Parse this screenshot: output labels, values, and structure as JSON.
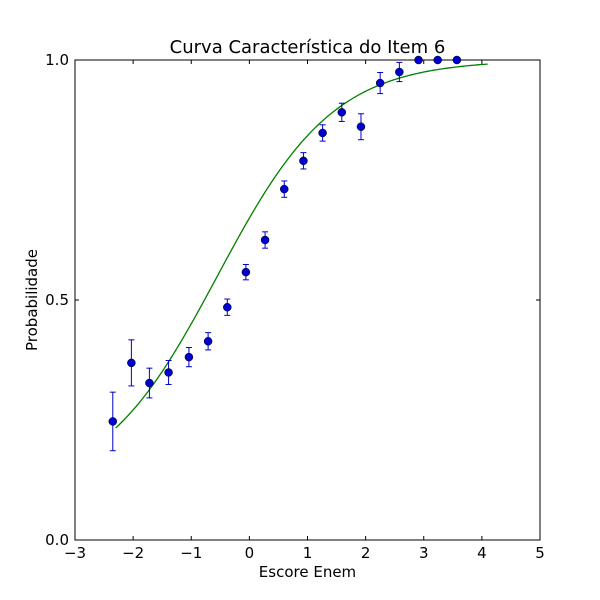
{
  "chart_data": {
    "type": "scatter",
    "title": "Curva Característica do Item 6",
    "xlabel": "Escore Enem",
    "ylabel": "Probabilidade",
    "xlim": [
      -3,
      5
    ],
    "ylim": [
      0.0,
      1.0
    ],
    "x_ticks": [
      -3,
      -2,
      -1,
      0,
      1,
      2,
      3,
      4,
      5
    ],
    "x_tick_labels": [
      "−3",
      "−2",
      "−1",
      "0",
      "1",
      "2",
      "3",
      "4",
      "5"
    ],
    "y_ticks": [
      0.0,
      0.5,
      1.0
    ],
    "y_tick_labels": [
      "0.0",
      "0.5",
      "1.0"
    ],
    "grid": false,
    "legend": "none",
    "series": [
      {
        "kind": "points-with-errorbars",
        "color": "#0000cc",
        "x": [
          -2.35,
          -2.03,
          -1.72,
          -1.39,
          -1.04,
          -0.71,
          -0.38,
          -0.06,
          0.27,
          0.6,
          0.93,
          1.26,
          1.59,
          1.92,
          2.25,
          2.58,
          2.91,
          3.24,
          3.57
        ],
        "y": [
          0.247,
          0.369,
          0.327,
          0.349,
          0.381,
          0.414,
          0.485,
          0.558,
          0.625,
          0.731,
          0.79,
          0.848,
          0.891,
          0.861,
          0.952,
          0.975,
          1.0,
          1.0,
          1.0
        ],
        "yerr": [
          0.061,
          0.048,
          0.031,
          0.025,
          0.02,
          0.018,
          0.017,
          0.016,
          0.017,
          0.017,
          0.017,
          0.017,
          0.019,
          0.027,
          0.022,
          0.02,
          0.003,
          0.002,
          0.002
        ]
      },
      {
        "kind": "fitted-curve",
        "color": "#007f00",
        "model": "logistic",
        "a": 1.0,
        "b": -0.55,
        "c": 0.1,
        "x_range": [
          -2.3,
          4.1
        ]
      }
    ]
  }
}
